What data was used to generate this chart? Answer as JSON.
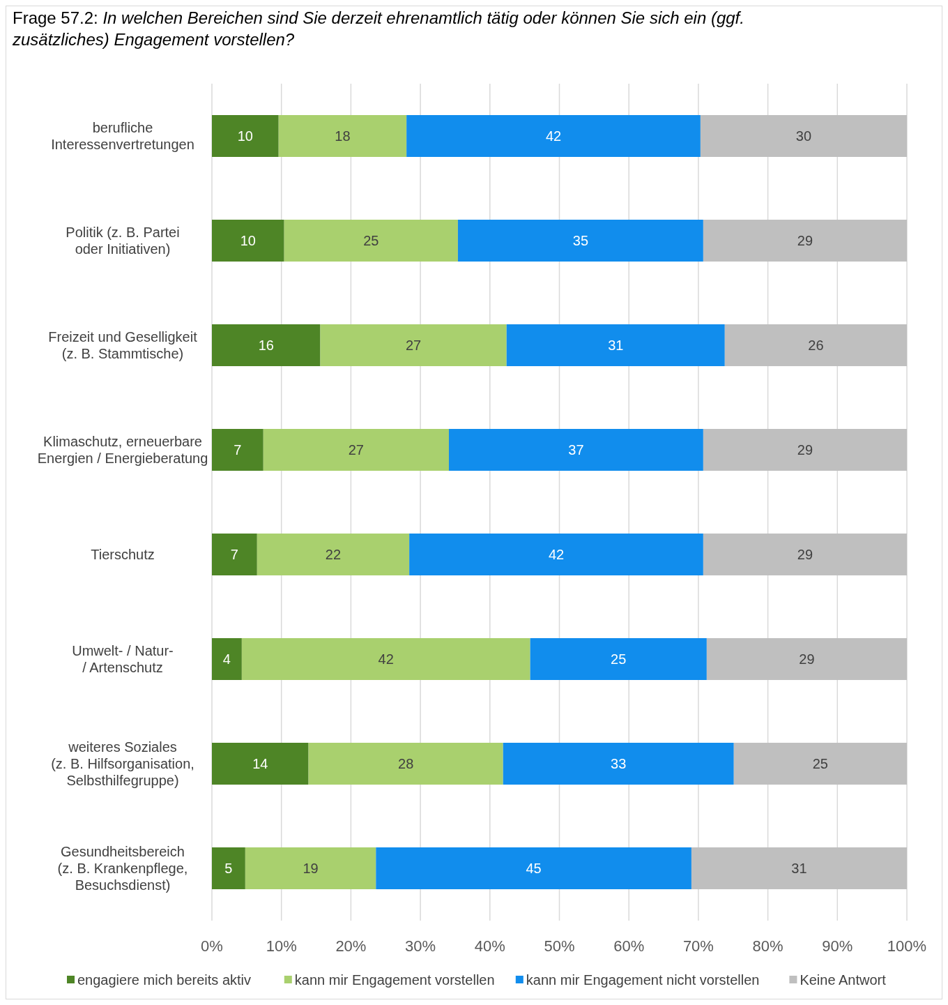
{
  "chart_data": {
    "type": "bar",
    "orientation": "horizontal",
    "stacked": true,
    "title": "Frage 57.2:",
    "subtitle": "In welchen Bereichen sind Sie derzeit ehrenamtlich tätig oder können Sie sich ein (ggf. zusätzliches) Engagement vorstellen?",
    "categories": [
      "berufliche\nInteressenvertretungen",
      "Politik (z. B. Partei\noder Initiativen)",
      "Freizeit und Geselligkeit\n(z. B. Stammtische)",
      "Klimaschutz, erneuerbare\nEnergien / Energieberatung",
      "Tierschutz",
      "Umwelt- / Natur-\n/ Artenschutz",
      "weiteres Soziales\n(z. B. Hilfsorganisation,\nSelbsthilfegruppe)",
      "Gesundheitsbereich\n(z. B. Krankenpflege,\nBesuchsdienst)"
    ],
    "series": [
      {
        "name": "engagiere mich bereits aktiv",
        "color": "#4e8526",
        "values": [
          9.6,
          10.4,
          15.6,
          7.4,
          6.5,
          4.3,
          13.9,
          4.8
        ],
        "value_labels": [
          "10",
          "10",
          "16",
          "7",
          "7",
          "4",
          "14",
          "5"
        ]
      },
      {
        "name": "kann mir Engagement vorstellen",
        "color": "#a9d06e",
        "values": [
          18.4,
          25.0,
          26.8,
          26.7,
          21.9,
          41.5,
          28.0,
          18.8
        ],
        "value_labels": [
          "18",
          "25",
          "27",
          "27",
          "22",
          "42",
          "28",
          "19"
        ]
      },
      {
        "name": "kann mir Engagement nicht vorstellen",
        "color": "#118ded",
        "values": [
          42.3,
          35.3,
          31.4,
          36.6,
          42.3,
          25.4,
          33.2,
          45.4
        ],
        "value_labels": [
          "42",
          "35",
          "31",
          "37",
          "42",
          "25",
          "33",
          "45"
        ]
      },
      {
        "name": "Keine Antwort",
        "color": "#bfbfbf",
        "values": [
          29.7,
          29.3,
          26.2,
          29.3,
          29.3,
          28.8,
          24.9,
          31.0
        ],
        "value_labels": [
          "30",
          "29",
          "26",
          "29",
          "29",
          "29",
          "25",
          "31"
        ]
      }
    ],
    "xlim": [
      0,
      100
    ],
    "xticks": [
      {
        "value": 0,
        "label": "0%"
      },
      {
        "value": 10,
        "label": "10%"
      },
      {
        "value": 20,
        "label": "20%"
      },
      {
        "value": 30,
        "label": "30%"
      },
      {
        "value": 40,
        "label": "40%"
      },
      {
        "value": 50,
        "label": "50%"
      },
      {
        "value": 60,
        "label": "60%"
      },
      {
        "value": 70,
        "label": "70%"
      },
      {
        "value": 80,
        "label": "80%"
      },
      {
        "value": 90,
        "label": "90%"
      },
      {
        "value": 100,
        "label": "100%"
      }
    ],
    "grid": "x",
    "legend": "bottom"
  }
}
